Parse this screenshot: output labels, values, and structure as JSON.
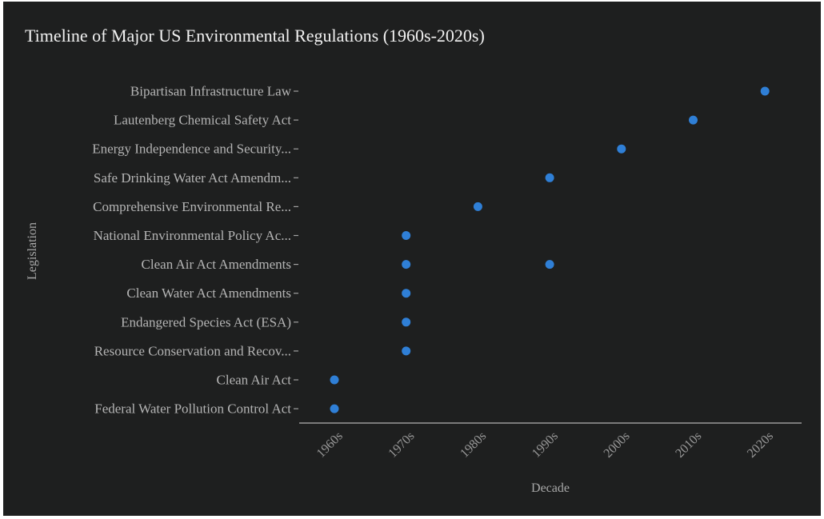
{
  "chart_data": {
    "type": "scatter",
    "title": "Timeline of Major US Environmental Regulations (1960s-2020s)",
    "xlabel": "Decade",
    "ylabel": "Legislation",
    "categories_x": [
      "1960s",
      "1970s",
      "1980s",
      "1990s",
      "2000s",
      "2010s",
      "2020s"
    ],
    "categories_y": [
      "Federal Water Pollution Control Act",
      "Clean Air Act",
      "Resource Conservation and Recov...",
      "Endangered Species Act (ESA)",
      "Clean Water Act Amendments",
      "Clean Air Act Amendments",
      "National Environmental Policy Ac...",
      "Comprehensive Environmental Re...",
      "Safe Drinking Water Act Amendm...",
      "Energy Independence and Security...",
      "Lautenberg Chemical Safety Act",
      "Bipartisan Infrastructure Law"
    ],
    "points": [
      {
        "x": "1960s",
        "y": "Federal Water Pollution Control Act"
      },
      {
        "x": "1960s",
        "y": "Clean Air Act"
      },
      {
        "x": "1970s",
        "y": "Resource Conservation and Recov..."
      },
      {
        "x": "1970s",
        "y": "Endangered Species Act (ESA)"
      },
      {
        "x": "1970s",
        "y": "Clean Water Act Amendments"
      },
      {
        "x": "1970s",
        "y": "Clean Air Act Amendments"
      },
      {
        "x": "1990s",
        "y": "Clean Air Act Amendments"
      },
      {
        "x": "1970s",
        "y": "National Environmental Policy Ac..."
      },
      {
        "x": "1980s",
        "y": "Comprehensive Environmental Re..."
      },
      {
        "x": "1990s",
        "y": "Safe Drinking Water Act Amendm..."
      },
      {
        "x": "2000s",
        "y": "Energy Independence and Security..."
      },
      {
        "x": "2010s",
        "y": "Lautenberg Chemical Safety Act"
      },
      {
        "x": "2020s",
        "y": "Bipartisan Infrastructure Law"
      }
    ],
    "grid": false,
    "legend": "none",
    "colors": {
      "background": "#1e1f1f",
      "marker": "#2f7fd6",
      "axis": "#9a9a9a"
    }
  }
}
